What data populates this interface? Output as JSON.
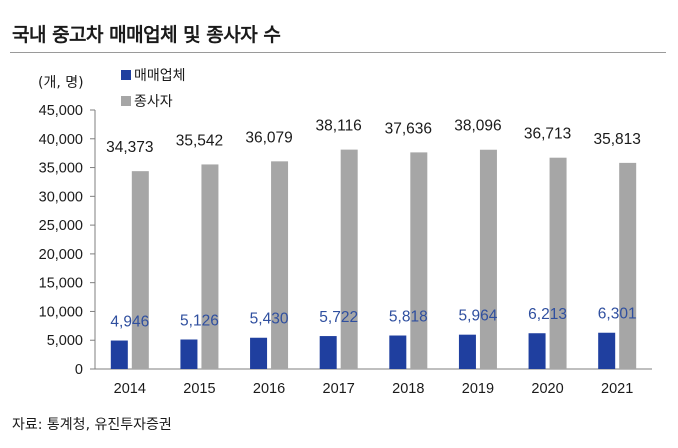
{
  "title": "국내 중고차 매매업체 및 종사자 수",
  "source": "자료: 통계청, 유진투자증권",
  "chart_data": {
    "type": "bar",
    "title": "국내 중고차 매매업체 및 종사자 수",
    "unit_label": "(개, 명)",
    "categories": [
      "2014",
      "2015",
      "2016",
      "2017",
      "2018",
      "2019",
      "2020",
      "2021"
    ],
    "series": [
      {
        "name": "매매업체",
        "color": "#1f3f9f",
        "label_color": "#2f4f9f",
        "values": [
          4946,
          5126,
          5430,
          5722,
          5818,
          5964,
          6213,
          6301
        ],
        "labels": [
          "4,946",
          "5,126",
          "5,430",
          "5,722",
          "5,818",
          "5,964",
          "6,213",
          "6,301"
        ]
      },
      {
        "name": "종사자",
        "color": "#a6a6a6",
        "label_color": "#1a1a1a",
        "values": [
          34373,
          35542,
          36079,
          38116,
          37636,
          38096,
          36713,
          35813
        ],
        "labels": [
          "34,373",
          "35,542",
          "36,079",
          "38,116",
          "37,636",
          "38,096",
          "36,713",
          "35,813"
        ]
      }
    ],
    "ylim": [
      0,
      45000
    ],
    "yticks": [
      0,
      5000,
      10000,
      15000,
      20000,
      25000,
      30000,
      35000,
      40000,
      45000
    ],
    "ytick_labels": [
      "0",
      "5,000",
      "10,000",
      "15,000",
      "20,000",
      "25,000",
      "30,000",
      "35,000",
      "40,000",
      "45,000"
    ],
    "legend_position": "top-left",
    "grid": false
  }
}
